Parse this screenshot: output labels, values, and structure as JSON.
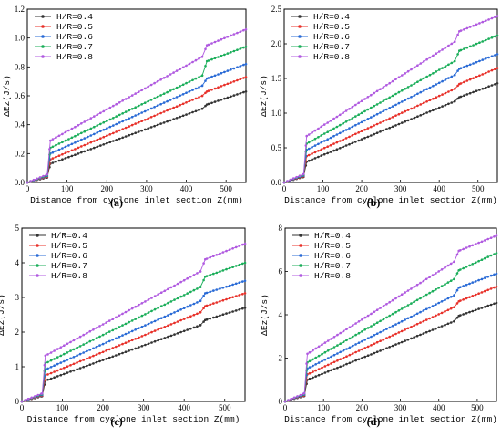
{
  "chart_data": [
    {
      "type": "line",
      "panel_label": "(a)",
      "xlabel": "Distance from cyclone inlet section Z(mm)",
      "ylabel": "ΔEz(J/s)",
      "xlim": [
        0,
        550
      ],
      "ylim": [
        0,
        1.2
      ],
      "xticks": [
        "0",
        "100",
        "200",
        "300",
        "400",
        "500"
      ],
      "yticks": [
        "0.0",
        "0.2",
        "0.4",
        "0.6",
        "0.8",
        "1.0",
        "1.2"
      ],
      "grid": false,
      "legend_position": "top-left",
      "series": [
        {
          "name": "H/R=0.4",
          "color": "#333333",
          "x": [
            0,
            50,
            58,
            440,
            452,
            550
          ],
          "y": [
            0,
            0.035,
            0.13,
            0.51,
            0.54,
            0.63
          ]
        },
        {
          "name": "H/R=0.5",
          "color": "#e8312a",
          "x": [
            0,
            50,
            58,
            440,
            452,
            550
          ],
          "y": [
            0,
            0.04,
            0.16,
            0.6,
            0.63,
            0.73
          ]
        },
        {
          "name": "H/R=0.6",
          "color": "#2a6bd6",
          "x": [
            0,
            50,
            58,
            440,
            452,
            550
          ],
          "y": [
            0,
            0.045,
            0.2,
            0.67,
            0.72,
            0.82
          ]
        },
        {
          "name": "H/R=0.7",
          "color": "#1bae5a",
          "x": [
            0,
            50,
            58,
            440,
            452,
            550
          ],
          "y": [
            0,
            0.05,
            0.24,
            0.74,
            0.84,
            0.94
          ]
        },
        {
          "name": "H/R=0.8",
          "color": "#b05ae0",
          "x": [
            0,
            50,
            58,
            440,
            452,
            550
          ],
          "y": [
            0,
            0.055,
            0.29,
            0.87,
            0.95,
            1.06
          ]
        }
      ]
    },
    {
      "type": "line",
      "panel_label": "(b)",
      "xlabel": "Distance from cyclone inlet section Z(mm)",
      "ylabel": "ΔEz(J/s)",
      "xlim": [
        0,
        550
      ],
      "ylim": [
        0,
        2.5
      ],
      "xticks": [
        "0",
        "100",
        "200",
        "300",
        "400",
        "500"
      ],
      "yticks": [
        "0.0",
        "0.5",
        "1.0",
        "1.5",
        "2.0",
        "2.5"
      ],
      "grid": false,
      "legend_position": "top-left",
      "series": [
        {
          "name": "H/R=0.4",
          "color": "#333333",
          "x": [
            0,
            50,
            58,
            440,
            452,
            550
          ],
          "y": [
            0,
            0.08,
            0.3,
            1.17,
            1.23,
            1.43
          ]
        },
        {
          "name": "H/R=0.5",
          "color": "#e8312a",
          "x": [
            0,
            50,
            58,
            440,
            452,
            550
          ],
          "y": [
            0,
            0.09,
            0.38,
            1.35,
            1.42,
            1.65
          ]
        },
        {
          "name": "H/R=0.6",
          "color": "#2a6bd6",
          "x": [
            0,
            50,
            58,
            440,
            452,
            550
          ],
          "y": [
            0,
            0.1,
            0.47,
            1.55,
            1.64,
            1.85
          ]
        },
        {
          "name": "H/R=0.7",
          "color": "#1bae5a",
          "x": [
            0,
            50,
            58,
            440,
            452,
            550
          ],
          "y": [
            0,
            0.11,
            0.56,
            1.75,
            1.9,
            2.12
          ]
        },
        {
          "name": "H/R=0.8",
          "color": "#b05ae0",
          "x": [
            0,
            50,
            58,
            440,
            452,
            550
          ],
          "y": [
            0,
            0.12,
            0.67,
            2.03,
            2.18,
            2.4
          ]
        }
      ]
    },
    {
      "type": "line",
      "panel_label": "(c)",
      "xlabel": "Distance from cyclone inlet section Z(mm)",
      "ylabel": "ΔEz(J/s)",
      "xlim": [
        0,
        550
      ],
      "ylim": [
        0,
        5
      ],
      "xticks": [
        "0",
        "100",
        "200",
        "300",
        "400",
        "500"
      ],
      "yticks": [
        "0",
        "1",
        "2",
        "3",
        "4",
        "5"
      ],
      "grid": false,
      "legend_position": "top-left",
      "series": [
        {
          "name": "H/R=0.4",
          "color": "#333333",
          "x": [
            0,
            50,
            58,
            440,
            452,
            550
          ],
          "y": [
            0,
            0.15,
            0.6,
            2.2,
            2.35,
            2.7
          ]
        },
        {
          "name": "H/R=0.5",
          "color": "#e8312a",
          "x": [
            0,
            50,
            58,
            440,
            452,
            550
          ],
          "y": [
            0,
            0.17,
            0.75,
            2.57,
            2.75,
            3.12
          ]
        },
        {
          "name": "H/R=0.6",
          "color": "#2a6bd6",
          "x": [
            0,
            50,
            58,
            440,
            452,
            550
          ],
          "y": [
            0,
            0.19,
            0.92,
            2.9,
            3.12,
            3.48
          ]
        },
        {
          "name": "H/R=0.7",
          "color": "#1bae5a",
          "x": [
            0,
            50,
            58,
            440,
            452,
            550
          ],
          "y": [
            0,
            0.21,
            1.1,
            3.3,
            3.6,
            4.0
          ]
        },
        {
          "name": "H/R=0.8",
          "color": "#b05ae0",
          "x": [
            0,
            50,
            58,
            440,
            452,
            550
          ],
          "y": [
            0,
            0.23,
            1.32,
            3.75,
            4.1,
            4.55
          ]
        }
      ]
    },
    {
      "type": "line",
      "panel_label": "(d)",
      "xlabel": "Distance from cyclone inlet section Z(mm)",
      "ylabel": "ΔEz(J/s)",
      "xlim": [
        0,
        550
      ],
      "ylim": [
        0,
        8
      ],
      "xticks": [
        "0",
        "100",
        "200",
        "300",
        "400",
        "500"
      ],
      "yticks": [
        "0",
        "2",
        "4",
        "6",
        "8"
      ],
      "grid": false,
      "legend_position": "top-left",
      "series": [
        {
          "name": "H/R=0.4",
          "color": "#333333",
          "x": [
            0,
            50,
            58,
            440,
            452,
            550
          ],
          "y": [
            0,
            0.25,
            1.0,
            3.7,
            3.95,
            4.55
          ]
        },
        {
          "name": "H/R=0.5",
          "color": "#e8312a",
          "x": [
            0,
            50,
            58,
            440,
            452,
            550
          ],
          "y": [
            0,
            0.28,
            1.25,
            4.35,
            4.62,
            5.3
          ]
        },
        {
          "name": "H/R=0.6",
          "color": "#2a6bd6",
          "x": [
            0,
            50,
            58,
            440,
            452,
            550
          ],
          "y": [
            0,
            0.31,
            1.52,
            4.9,
            5.25,
            5.9
          ]
        },
        {
          "name": "H/R=0.7",
          "color": "#1bae5a",
          "x": [
            0,
            50,
            58,
            440,
            452,
            550
          ],
          "y": [
            0,
            0.34,
            1.8,
            5.65,
            6.05,
            6.85
          ]
        },
        {
          "name": "H/R=0.8",
          "color": "#b05ae0",
          "x": [
            0,
            50,
            58,
            440,
            452,
            550
          ],
          "y": [
            0,
            0.37,
            2.2,
            6.45,
            6.95,
            7.65
          ]
        }
      ]
    }
  ]
}
